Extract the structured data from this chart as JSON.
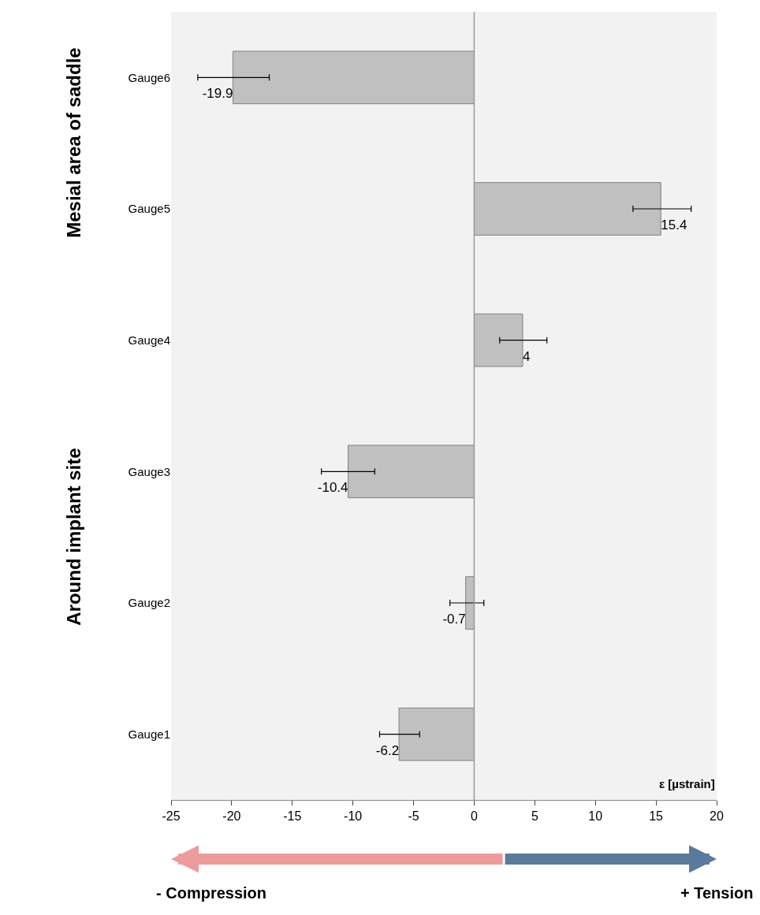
{
  "chart_data": {
    "type": "bar",
    "orientation": "horizontal",
    "categories": [
      "Gauge6",
      "Gauge5",
      "Gauge4",
      "Gauge3",
      "Gauge2",
      "Gauge1"
    ],
    "values": [
      -19.9,
      15.4,
      4,
      -10.4,
      -0.7,
      -6.2
    ],
    "errors": [
      [
        -22.8,
        -16.9
      ],
      [
        13.1,
        17.9
      ],
      [
        2.1,
        6.0
      ],
      [
        -12.6,
        -8.2
      ],
      [
        -2.0,
        0.8
      ],
      [
        -7.8,
        -4.5
      ]
    ],
    "color": "#c0c0c0",
    "data_labels": true,
    "ref_lines": [
      {
        "axis": "x",
        "value": 0,
        "color": "#999999"
      }
    ],
    "xlabel": "ε [µstrain]",
    "xlim": [
      -25,
      20
    ],
    "xticks": [
      -25,
      -20,
      -15,
      -10,
      -5,
      0,
      5,
      10,
      15,
      20
    ],
    "grid": false,
    "legend": false,
    "annotations": [
      "Mesial area of saddle",
      "Around implant site",
      "- Compression",
      "+ Tension"
    ]
  }
}
